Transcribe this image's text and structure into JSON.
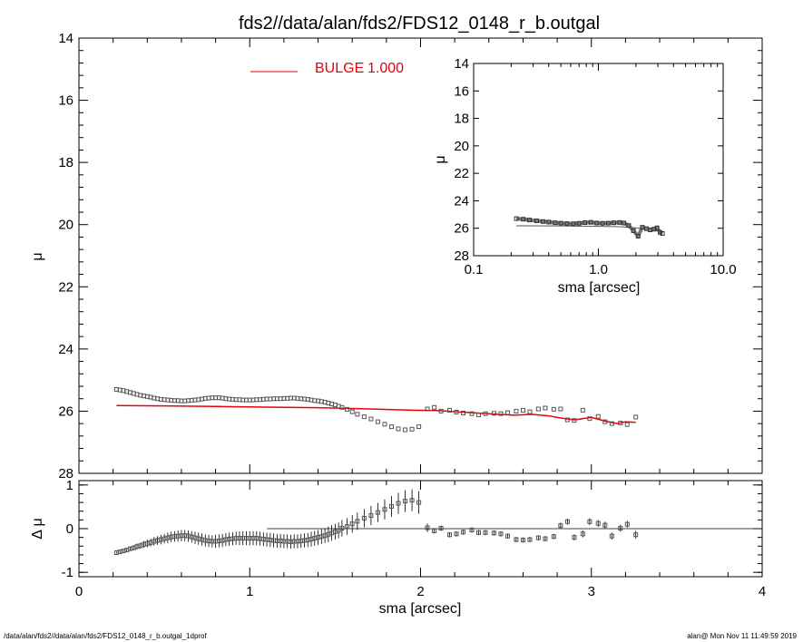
{
  "title": "fds2//data/alan/fds2/FDS12_0148_r_b.outgal",
  "footer_left": "/data/alan/fds2//data/alan/fds2/FDS12_0148_r_b.outgal_1dprof",
  "footer_right": "alan@  Mon Nov 11 11:49:59 2019",
  "colors": {
    "model": "#e8000b",
    "axes": "#000000",
    "points": "#555555"
  },
  "chart_data": [
    {
      "name": "main",
      "type": "scatter",
      "xlabel": "",
      "ylabel": "μ",
      "xlim": [
        0,
        4
      ],
      "ylim": [
        28,
        14
      ],
      "yinverted": true,
      "yticks": [
        "14",
        "16",
        "18",
        "20",
        "22",
        "24",
        "26",
        "28"
      ],
      "legend": {
        "label": "BULGE",
        "value": "1.000",
        "placement": "top-left"
      },
      "series": [
        {
          "name": "data",
          "marker": "square",
          "x": [
            0.22,
            0.24,
            0.26,
            0.28,
            0.3,
            0.32,
            0.34,
            0.36,
            0.38,
            0.4,
            0.42,
            0.44,
            0.46,
            0.48,
            0.5,
            0.52,
            0.54,
            0.56,
            0.58,
            0.6,
            0.62,
            0.64,
            0.66,
            0.68,
            0.7,
            0.72,
            0.74,
            0.76,
            0.78,
            0.8,
            0.82,
            0.84,
            0.86,
            0.88,
            0.9,
            0.92,
            0.94,
            0.96,
            0.98,
            1.0,
            1.02,
            1.04,
            1.06,
            1.08,
            1.1,
            1.12,
            1.14,
            1.16,
            1.18,
            1.2,
            1.22,
            1.24,
            1.26,
            1.28,
            1.3,
            1.32,
            1.34,
            1.36,
            1.38,
            1.4,
            1.42,
            1.44,
            1.46,
            1.48,
            1.5,
            1.52,
            1.54,
            1.57,
            1.6,
            1.63,
            1.67,
            1.71,
            1.75,
            1.79,
            1.83,
            1.87,
            1.91,
            1.95,
            1.99,
            2.04,
            2.08,
            2.12,
            2.17,
            2.21,
            2.25,
            2.3,
            2.34,
            2.38,
            2.43,
            2.47,
            2.51,
            2.56,
            2.6,
            2.64,
            2.69,
            2.73,
            2.78,
            2.82,
            2.86,
            2.9,
            2.95,
            2.99,
            3.04,
            3.08,
            3.12,
            3.17,
            3.21,
            3.26
          ],
          "y": [
            25.3,
            25.32,
            25.34,
            25.37,
            25.4,
            25.43,
            25.46,
            25.49,
            25.51,
            25.53,
            25.55,
            25.58,
            25.6,
            25.62,
            25.63,
            25.64,
            25.65,
            25.66,
            25.66,
            25.67,
            25.67,
            25.66,
            25.65,
            25.64,
            25.63,
            25.61,
            25.59,
            25.58,
            25.57,
            25.57,
            25.57,
            25.58,
            25.6,
            25.61,
            25.62,
            25.63,
            25.63,
            25.64,
            25.64,
            25.64,
            25.64,
            25.63,
            25.63,
            25.62,
            25.61,
            25.61,
            25.6,
            25.6,
            25.6,
            25.59,
            25.59,
            25.58,
            25.58,
            25.59,
            25.6,
            25.61,
            25.62,
            25.64,
            25.66,
            25.67,
            25.69,
            25.71,
            25.74,
            25.77,
            25.8,
            25.84,
            25.88,
            25.94,
            26.02,
            26.1,
            26.18,
            26.25,
            26.34,
            26.42,
            26.5,
            26.57,
            26.6,
            26.58,
            26.5,
            25.93,
            25.88,
            26.0,
            25.97,
            26.03,
            26.06,
            26.08,
            26.12,
            26.08,
            26.07,
            26.08,
            26.05,
            26.0,
            25.97,
            26.02,
            25.93,
            25.9,
            25.94,
            25.93,
            26.28,
            26.3,
            25.97,
            26.24,
            26.17,
            26.34,
            26.4,
            26.38,
            26.43,
            26.19
          ]
        },
        {
          "name": "model",
          "type": "line",
          "x": [
            0.22,
            0.5,
            0.8,
            1.1,
            1.4,
            1.7,
            1.95,
            2.1,
            2.3,
            2.45,
            2.55,
            2.65,
            2.75,
            2.82,
            2.9,
            3.0,
            3.08,
            3.15,
            3.2,
            3.26
          ],
          "y": [
            25.82,
            25.83,
            25.85,
            25.87,
            25.89,
            25.93,
            25.97,
            25.98,
            26.05,
            26.1,
            26.13,
            26.1,
            26.15,
            26.22,
            26.28,
            26.2,
            26.32,
            26.4,
            26.34,
            26.36
          ]
        }
      ]
    },
    {
      "name": "inset",
      "type": "scatter",
      "xlabel": "sma [arcsec]",
      "ylabel": "μ",
      "xscale": "log",
      "xlim": [
        0.1,
        10
      ],
      "xticks": [
        "0.1",
        "1.0",
        "10.0"
      ],
      "ylim": [
        28,
        14
      ],
      "yinverted": true,
      "yticks": [
        "14",
        "16",
        "18",
        "20",
        "22",
        "24",
        "26",
        "28"
      ],
      "series": [
        {
          "name": "data",
          "x": [
            0.22,
            0.25,
            0.28,
            0.32,
            0.36,
            0.4,
            0.45,
            0.5,
            0.56,
            0.63,
            0.7,
            0.78,
            0.87,
            0.97,
            1.08,
            1.2,
            1.33,
            1.48,
            1.6,
            1.75,
            1.91,
            2.08,
            2.25,
            2.43,
            2.6,
            2.78,
            2.95,
            3.12,
            3.26
          ],
          "y": [
            25.3,
            25.34,
            25.4,
            25.46,
            25.51,
            25.55,
            25.6,
            25.63,
            25.66,
            25.67,
            25.64,
            25.59,
            25.57,
            25.62,
            25.64,
            25.63,
            25.6,
            25.58,
            25.62,
            25.8,
            26.18,
            26.58,
            25.93,
            26.03,
            26.12,
            26.07,
            25.97,
            26.3,
            26.38
          ]
        },
        {
          "name": "model",
          "type": "line",
          "x": [
            0.22,
            0.5,
            1.0,
            1.5,
            2.0,
            2.5,
            3.0,
            3.26
          ],
          "y": [
            25.82,
            25.83,
            25.86,
            25.89,
            25.97,
            26.1,
            26.2,
            26.36
          ]
        }
      ]
    },
    {
      "name": "residual",
      "type": "scatter",
      "xlabel": "sma [arcsec]",
      "ylabel": "Δ μ",
      "xlim": [
        0,
        4
      ],
      "xticks": [
        "0",
        "1",
        "2",
        "3",
        "4"
      ],
      "ylim": [
        -1.1,
        1.1
      ],
      "yticks": [
        "1",
        "0",
        "-1"
      ],
      "zero_line_from": 1.1,
      "series": [
        {
          "name": "residual",
          "marker": "square",
          "x": [
            0.22,
            0.24,
            0.26,
            0.28,
            0.3,
            0.32,
            0.34,
            0.36,
            0.38,
            0.4,
            0.42,
            0.44,
            0.46,
            0.48,
            0.5,
            0.52,
            0.54,
            0.56,
            0.58,
            0.6,
            0.62,
            0.64,
            0.66,
            0.68,
            0.7,
            0.72,
            0.74,
            0.76,
            0.78,
            0.8,
            0.82,
            0.84,
            0.86,
            0.88,
            0.9,
            0.92,
            0.94,
            0.96,
            0.98,
            1.0,
            1.02,
            1.04,
            1.06,
            1.08,
            1.1,
            1.12,
            1.14,
            1.16,
            1.18,
            1.2,
            1.22,
            1.24,
            1.26,
            1.28,
            1.3,
            1.32,
            1.34,
            1.36,
            1.38,
            1.4,
            1.42,
            1.44,
            1.46,
            1.48,
            1.5,
            1.52,
            1.54,
            1.57,
            1.6,
            1.63,
            1.67,
            1.71,
            1.75,
            1.79,
            1.83,
            1.87,
            1.91,
            1.95,
            1.99,
            2.04,
            2.08,
            2.12,
            2.17,
            2.21,
            2.25,
            2.3,
            2.34,
            2.38,
            2.43,
            2.47,
            2.51,
            2.56,
            2.6,
            2.64,
            2.69,
            2.73,
            2.78,
            2.82,
            2.86,
            2.9,
            2.95,
            2.99,
            3.04,
            3.08,
            3.12,
            3.17,
            3.21,
            3.26
          ],
          "y": [
            -0.55,
            -0.53,
            -0.51,
            -0.49,
            -0.46,
            -0.44,
            -0.41,
            -0.39,
            -0.36,
            -0.34,
            -0.32,
            -0.29,
            -0.27,
            -0.25,
            -0.23,
            -0.21,
            -0.19,
            -0.18,
            -0.17,
            -0.16,
            -0.16,
            -0.17,
            -0.19,
            -0.21,
            -0.23,
            -0.25,
            -0.27,
            -0.28,
            -0.29,
            -0.29,
            -0.28,
            -0.27,
            -0.25,
            -0.24,
            -0.23,
            -0.22,
            -0.22,
            -0.22,
            -0.22,
            -0.22,
            -0.22,
            -0.22,
            -0.23,
            -0.24,
            -0.25,
            -0.26,
            -0.27,
            -0.28,
            -0.28,
            -0.29,
            -0.29,
            -0.3,
            -0.29,
            -0.29,
            -0.28,
            -0.27,
            -0.26,
            -0.24,
            -0.22,
            -0.2,
            -0.18,
            -0.16,
            -0.13,
            -0.1,
            -0.07,
            -0.04,
            0.01,
            0.05,
            0.11,
            0.17,
            0.24,
            0.3,
            0.37,
            0.44,
            0.51,
            0.58,
            0.63,
            0.65,
            0.6,
            0.02,
            -0.05,
            0.01,
            -0.14,
            -0.12,
            -0.08,
            -0.03,
            -0.09,
            -0.09,
            -0.1,
            -0.12,
            -0.17,
            -0.25,
            -0.26,
            -0.25,
            -0.21,
            -0.23,
            -0.18,
            0.07,
            0.16,
            -0.2,
            -0.12,
            0.16,
            0.12,
            0.08,
            -0.17,
            0.01,
            0.1,
            -0.14
          ],
          "err": [
            0.02,
            0.03,
            0.03,
            0.04,
            0.05,
            0.06,
            0.07,
            0.07,
            0.08,
            0.09,
            0.09,
            0.1,
            0.1,
            0.11,
            0.11,
            0.12,
            0.12,
            0.12,
            0.13,
            0.13,
            0.13,
            0.13,
            0.13,
            0.14,
            0.14,
            0.14,
            0.14,
            0.14,
            0.14,
            0.15,
            0.15,
            0.15,
            0.15,
            0.15,
            0.15,
            0.15,
            0.16,
            0.16,
            0.16,
            0.16,
            0.16,
            0.16,
            0.16,
            0.16,
            0.16,
            0.16,
            0.16,
            0.16,
            0.16,
            0.16,
            0.16,
            0.16,
            0.16,
            0.16,
            0.16,
            0.16,
            0.16,
            0.17,
            0.17,
            0.17,
            0.17,
            0.17,
            0.18,
            0.18,
            0.18,
            0.18,
            0.19,
            0.19,
            0.2,
            0.2,
            0.21,
            0.22,
            0.22,
            0.23,
            0.24,
            0.24,
            0.25,
            0.25,
            0.26,
            0.1,
            0.06,
            0.06,
            0.06,
            0.06,
            0.06,
            0.06,
            0.06,
            0.06,
            0.06,
            0.06,
            0.06,
            0.06,
            0.06,
            0.06,
            0.06,
            0.06,
            0.06,
            0.07,
            0.07,
            0.07,
            0.08,
            0.08,
            0.08,
            0.08,
            0.08,
            0.08,
            0.08,
            0.09
          ]
        }
      ]
    }
  ]
}
